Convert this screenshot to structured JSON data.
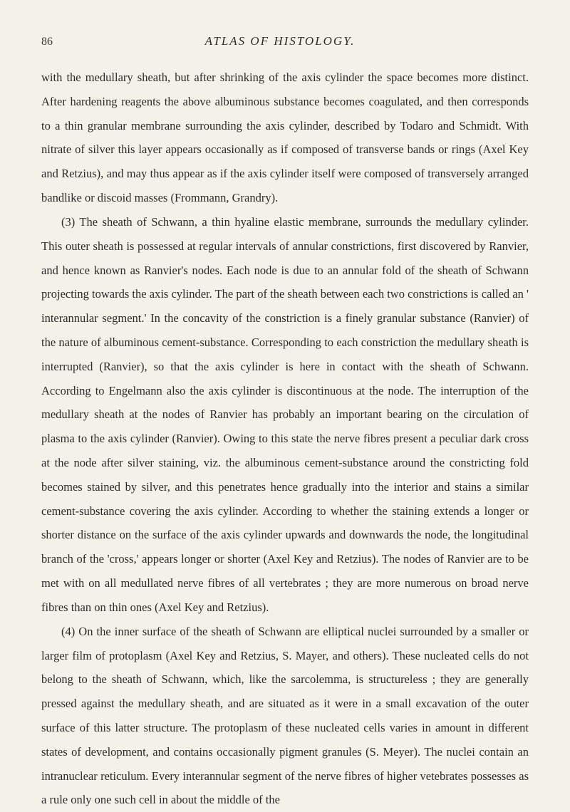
{
  "page_number": "86",
  "book_title": "ATLAS OF HISTOLOGY.",
  "paragraphs": [
    "with the medullary sheath, but after shrinking of the axis cylinder the space becomes more distinct. After hardening reagents the above albuminous substance becomes coagulated, and then corresponds to a thin granular membrane surrounding the axis cylinder, described by Todaro and Schmidt. With nitrate of silver this layer appears occasionally as if composed of transverse bands or rings (Axel Key and Retzius), and may thus appear as if the axis cylinder itself were composed of transversely arranged bandlike or discoid masses (Frommann, Grandry).",
    "(3) The sheath of Schwann, a thin hyaline elastic membrane, surrounds the medullary cylinder. This outer sheath is possessed at regular intervals of annular constrictions, first discovered by Ranvier, and hence known as Ranvier's nodes. Each node is due to an annular fold of the sheath of Schwann projecting towards the axis cylinder. The part of the sheath between each two constrictions is called an ' interannular segment.' In the concavity of the constriction is a finely granular substance (Ranvier) of the nature of albuminous cement-substance. Corresponding to each constriction the medullary sheath is interrupted (Ranvier), so that the axis cylinder is here in contact with the sheath of Schwann. According to Engelmann also the axis cylinder is discontinuous at the node. The interruption of the medullary sheath at the nodes of Ranvier has probably an important bearing on the circulation of plasma to the axis cylinder (Ranvier). Owing to this state the nerve fibres present a peculiar dark cross at the node after silver staining, viz. the albuminous cement-substance around the constricting fold becomes stained by silver, and this penetrates hence gradually into the interior and stains a similar cement-substance covering the axis cylinder. According to whether the staining extends a longer or shorter distance on the surface of the axis cylinder upwards and downwards the node, the longitudinal branch of the 'cross,' appears longer or shorter (Axel Key and Retzius). The nodes of Ranvier are to be met with on all medullated nerve fibres of all vertebrates ; they are more numerous on broad nerve fibres than on thin ones (Axel Key and Retzius).",
    "(4) On the inner surface of the sheath of Schwann are elliptical nuclei surrounded by a smaller or larger film of protoplasm (Axel Key and Retzius, S. Mayer, and others). These nucleated cells do not belong to the sheath of Schwann, which, like the sarcolemma, is structureless ; they are generally pressed against the medullary sheath, and are situated as it were in a small excavation of the outer surface of this latter structure. The protoplasm of these nucleated cells varies in amount in different states of development, and contains occasionally pigment granules (S. Meyer). The nuclei contain an intranuclear reticulum. Every interannular segment of the nerve fibres of higher vetebrates possesses as a rule only one such cell in about the middle of the"
  ]
}
